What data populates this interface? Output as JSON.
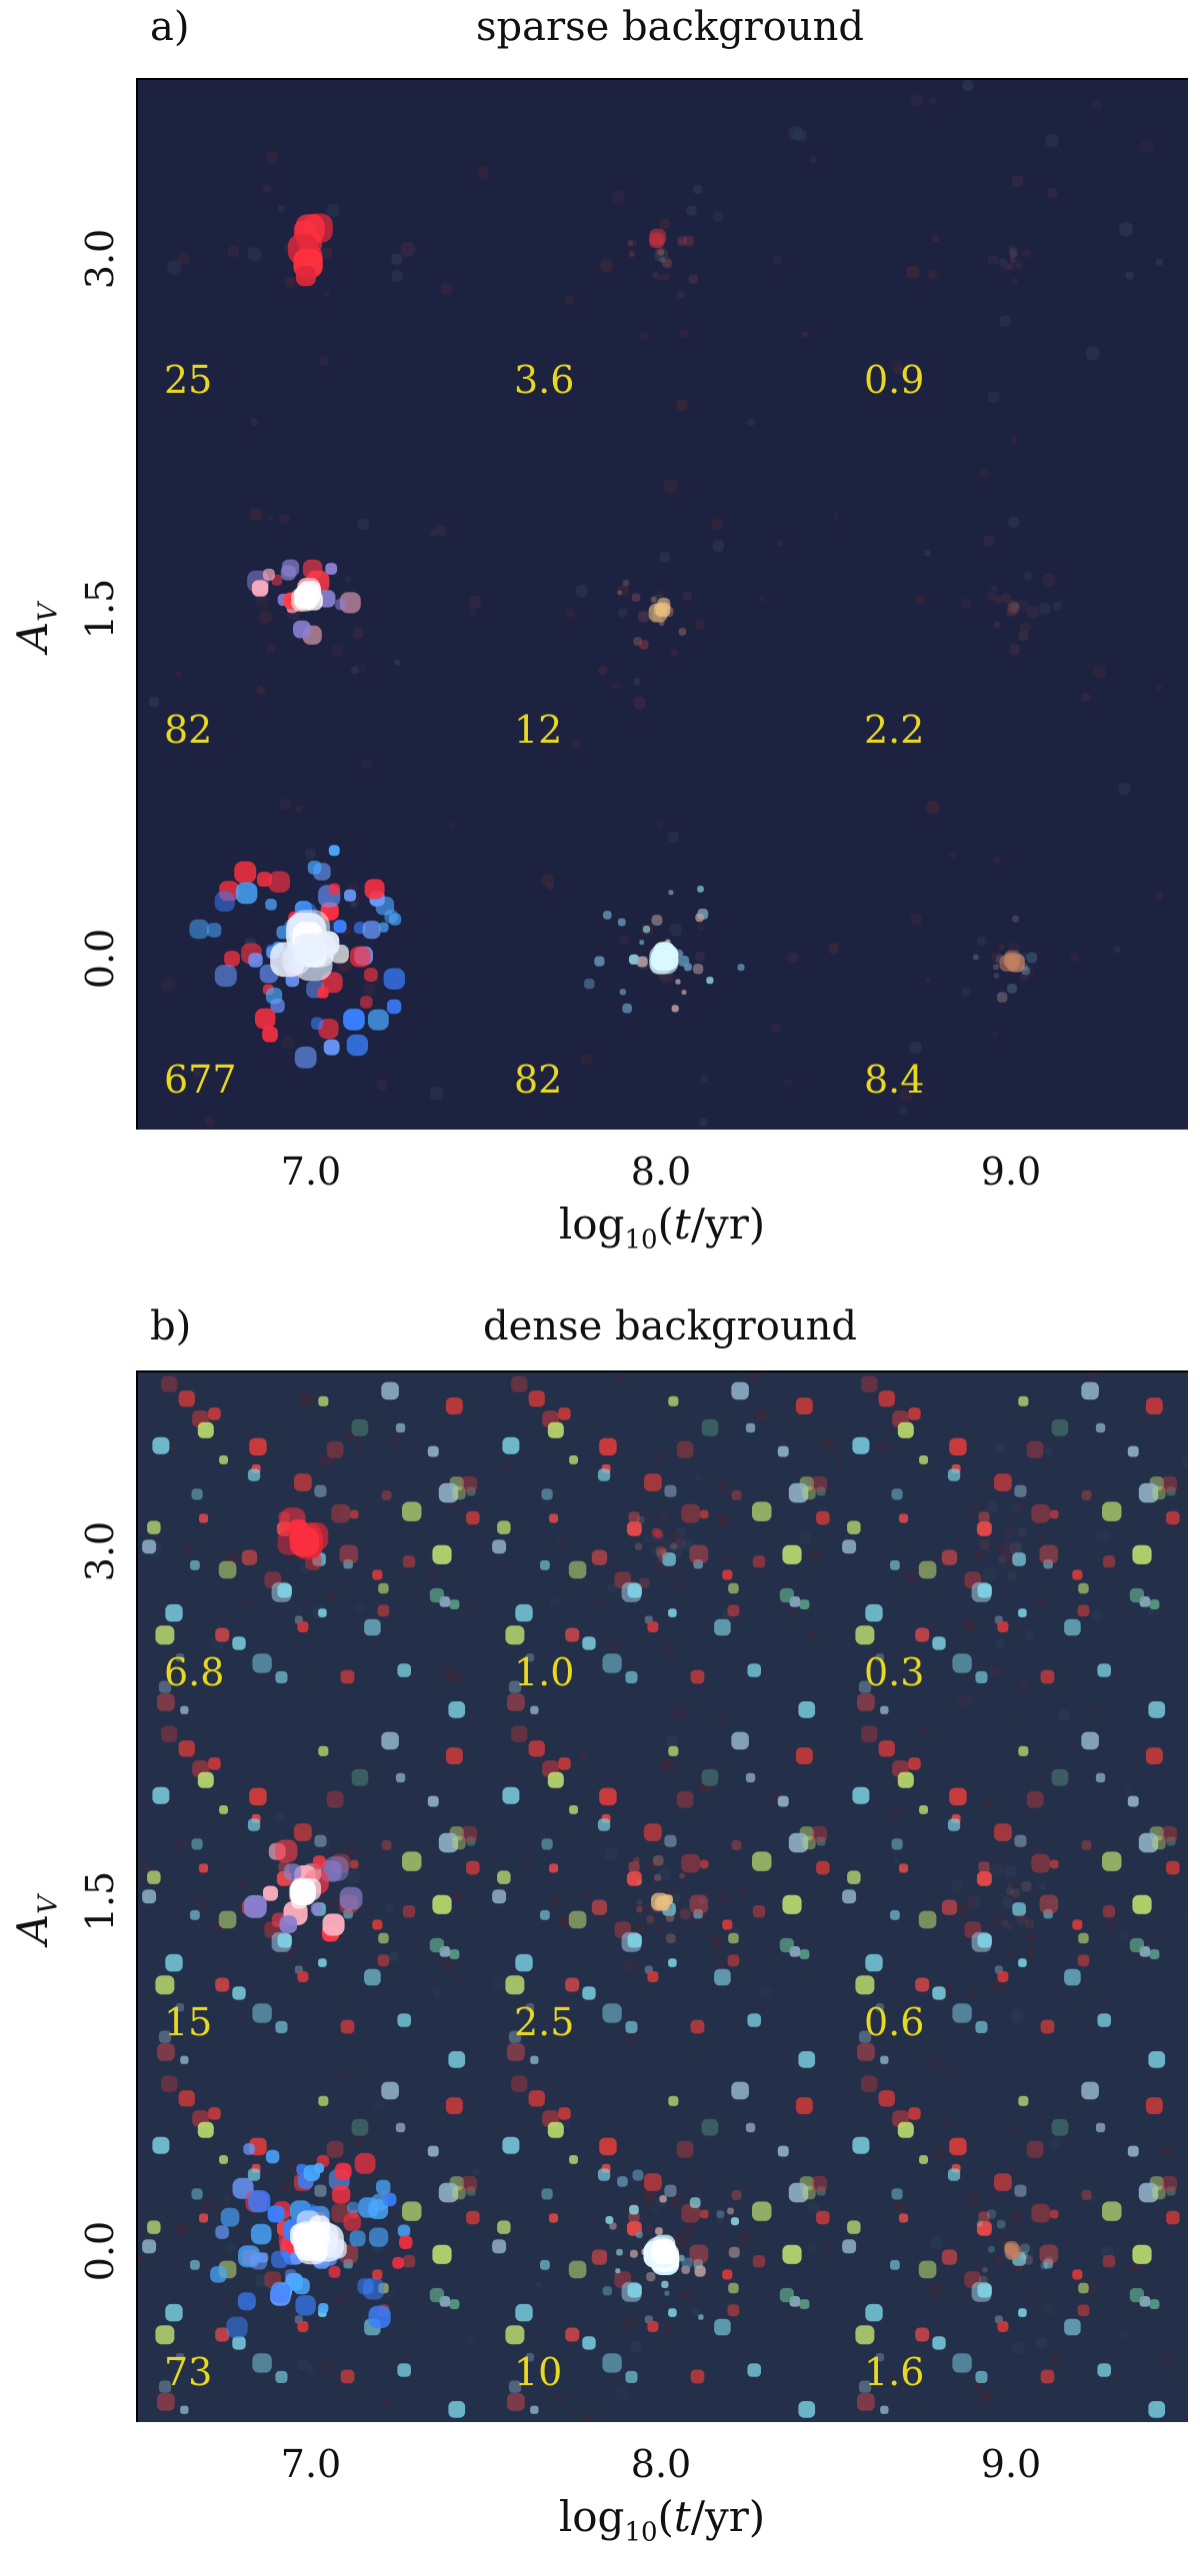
{
  "panels": [
    {
      "letter": "a)",
      "title": "sparse background",
      "y_axis": "A_V",
      "row_labels": [
        "3.0",
        "1.5",
        "0.0"
      ],
      "col_labels": [
        "7.0",
        "8.0",
        "9.0"
      ],
      "x_axis": "log10(t/yr)",
      "cells": [
        [
          "25",
          "3.6",
          "0.9"
        ],
        [
          "82",
          "12",
          "2.2"
        ],
        [
          "677",
          "82",
          "8.4"
        ]
      ]
    },
    {
      "letter": "b)",
      "title": "dense background",
      "y_axis": "A_V",
      "row_labels": [
        "3.0",
        "1.5",
        "0.0"
      ],
      "col_labels": [
        "7.0",
        "8.0",
        "9.0"
      ],
      "x_axis": "log10(t/yr)",
      "cells": [
        [
          "6.8",
          "1.0",
          "0.3"
        ],
        [
          "15",
          "2.5",
          "0.6"
        ],
        [
          "73",
          "10",
          "1.6"
        ]
      ]
    }
  ],
  "colors": {
    "cell_background": "#1d2240",
    "dense_background": "#243049",
    "value_text": "#e8d820"
  }
}
